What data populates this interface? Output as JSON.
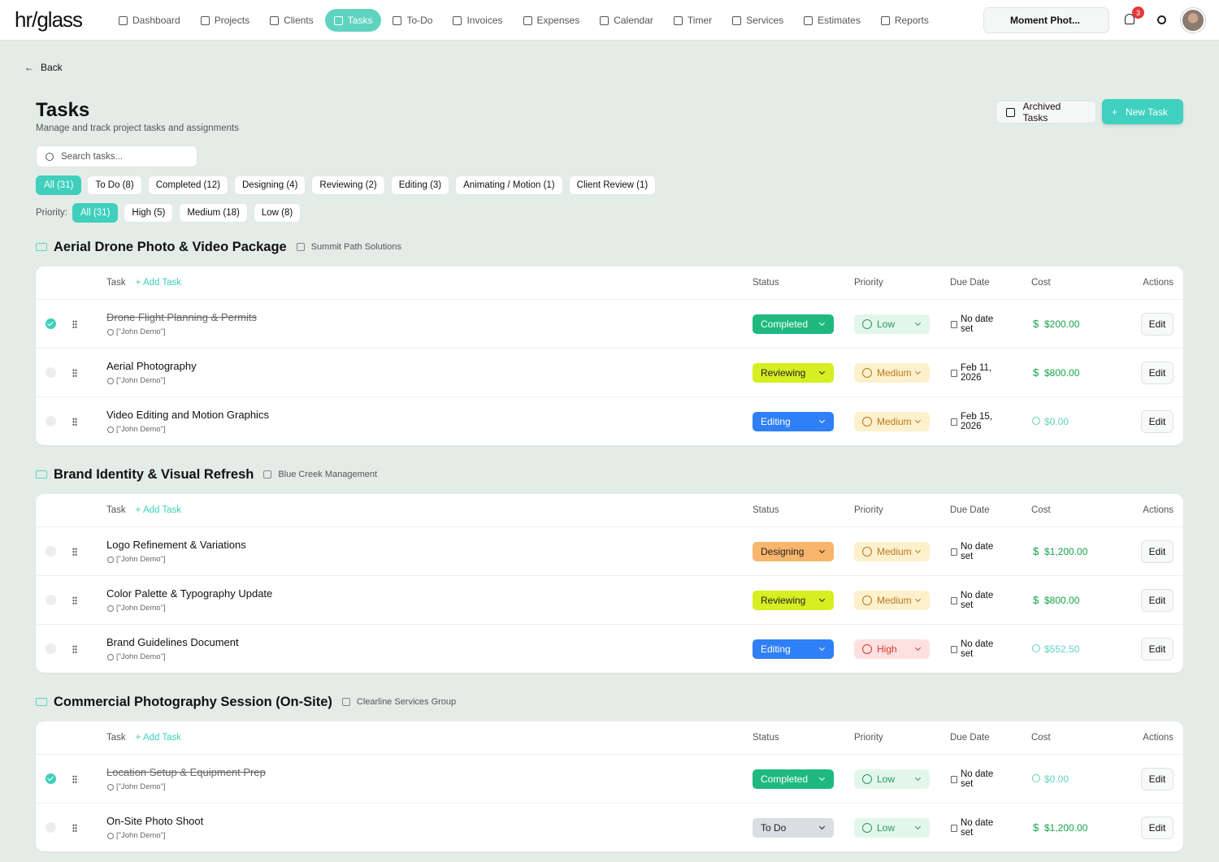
{
  "nav": {
    "logo": "hr/glass",
    "items": [
      "Dashboard",
      "Projects",
      "Clients",
      "Tasks",
      "To-Do",
      "Invoices",
      "Expenses",
      "Calendar",
      "Timer",
      "Services",
      "Estimates",
      "Reports"
    ],
    "workspace": "Moment Phot...",
    "notifications": "3"
  },
  "back": "Back",
  "header": {
    "title": "Tasks",
    "subtitle": "Manage and track project tasks and assignments",
    "archived": "Archived Tasks",
    "new_task": "New Task"
  },
  "search_placeholder": "Search tasks...",
  "status_filters": [
    "All (31)",
    "To Do (8)",
    "Completed (12)",
    "Designing (4)",
    "Reviewing (2)",
    "Editing (3)",
    "Animating / Motion (1)",
    "Client Review (1)"
  ],
  "priority_label": "Priority:",
  "priority_filters": [
    "All (31)",
    "High (5)",
    "Medium (18)",
    "Low (8)"
  ],
  "columns": {
    "task": "Task",
    "add_task": "Add Task",
    "status": "Status",
    "priority": "Priority",
    "due": "Due Date",
    "cost": "Cost",
    "actions": "Actions"
  },
  "edit": "Edit",
  "groups": [
    {
      "title": "Aerial Drone Photo & Video Package",
      "client": "Summit Path Solutions",
      "tasks": [
        {
          "name": "Drone Flight Planning & Permits",
          "assignee": "[\"John Demo\"]",
          "status": "Completed",
          "priority": "Low",
          "due": "No date set",
          "cost": "$200.00",
          "done": true,
          "timer": false
        },
        {
          "name": "Aerial Photography",
          "assignee": "[\"John Demo\"]",
          "status": "Reviewing",
          "priority": "Medium",
          "due": "Feb 11, 2026",
          "cost": "$800.00",
          "done": false,
          "timer": false
        },
        {
          "name": "Video Editing and Motion Graphics",
          "assignee": "[\"John Demo\"]",
          "status": "Editing",
          "priority": "Medium",
          "due": "Feb 15, 2026",
          "cost": "$0.00",
          "done": false,
          "timer": true
        }
      ]
    },
    {
      "title": "Brand Identity & Visual Refresh",
      "client": "Blue Creek Management",
      "tasks": [
        {
          "name": "Logo Refinement & Variations",
          "assignee": "[\"John Demo\"]",
          "status": "Designing",
          "priority": "Medium",
          "due": "No date set",
          "cost": "$1,200.00",
          "done": false,
          "timer": false
        },
        {
          "name": "Color Palette & Typography Update",
          "assignee": "[\"John Demo\"]",
          "status": "Reviewing",
          "priority": "Medium",
          "due": "No date set",
          "cost": "$800.00",
          "done": false,
          "timer": false
        },
        {
          "name": "Brand Guidelines Document",
          "assignee": "[\"John Demo\"]",
          "status": "Editing",
          "priority": "High",
          "due": "No date set",
          "cost": "$552.50",
          "done": false,
          "timer": true
        }
      ]
    },
    {
      "title": "Commercial Photography Session (On-Site)",
      "client": "Clearline Services Group",
      "tasks": [
        {
          "name": "Location Setup & Equipment Prep",
          "assignee": "[\"John Demo\"]",
          "status": "Completed",
          "priority": "Low",
          "due": "No date set",
          "cost": "$0.00",
          "done": true,
          "timer": true
        },
        {
          "name": "On-Site Photo Shoot",
          "assignee": "[\"John Demo\"]",
          "status": "To Do",
          "priority": "Low",
          "due": "No date set",
          "cost": "$1,200.00",
          "done": false,
          "timer": false
        }
      ]
    }
  ]
}
